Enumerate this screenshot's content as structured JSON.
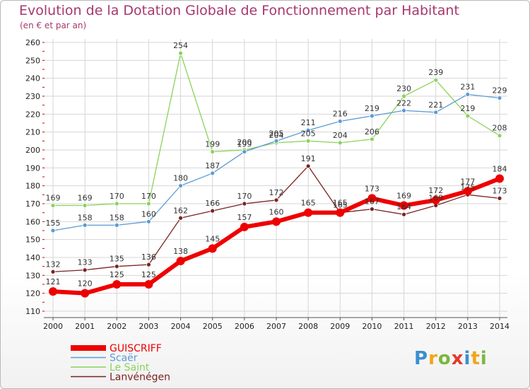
{
  "title": "Evolution de la Dotation Globale de Fonctionnement par Habitant",
  "subtitle": "(en € et par an)",
  "logo": {
    "text": "Proxiti",
    "colors": [
      "#3a8fd0",
      "#f2a51b",
      "#7ab83d",
      "#e23b2d",
      "#3a8fd0",
      "#f2a51b",
      "#7ab83d"
    ]
  },
  "chart_data": {
    "type": "line",
    "x": [
      "2000",
      "2001",
      "2002",
      "2003",
      "2004",
      "2005",
      "2006",
      "2007",
      "2008",
      "2009",
      "2010",
      "2011",
      "2012",
      "2013",
      "2014"
    ],
    "ylim": [
      110,
      260
    ],
    "yticks": [
      110,
      120,
      130,
      140,
      150,
      160,
      170,
      180,
      190,
      200,
      210,
      220,
      230,
      240,
      250,
      260
    ],
    "legend_position": "bottom-left",
    "series": [
      {
        "name": "GUISCRIFF",
        "color": "#ee0000",
        "values": [
          121,
          120,
          125,
          125,
          138,
          145,
          157,
          160,
          165,
          165,
          173,
          169,
          172,
          177,
          184
        ]
      },
      {
        "name": "Scaër",
        "color": "#5b9bd5",
        "values": [
          155,
          158,
          158,
          160,
          180,
          187,
          199,
          205,
          211,
          216,
          219,
          222,
          221,
          231,
          229
        ]
      },
      {
        "name": "Le Saint",
        "color": "#8ad35b",
        "values": [
          169,
          169,
          170,
          170,
          254,
          199,
          200,
          204,
          205,
          204,
          206,
          230,
          239,
          219,
          208
        ]
      },
      {
        "name": "Lanvénégen",
        "color": "#7a2222",
        "values": [
          132,
          133,
          135,
          136,
          162,
          166,
          170,
          172,
          191,
          165,
          167,
          164,
          169,
          175,
          173
        ]
      }
    ]
  }
}
